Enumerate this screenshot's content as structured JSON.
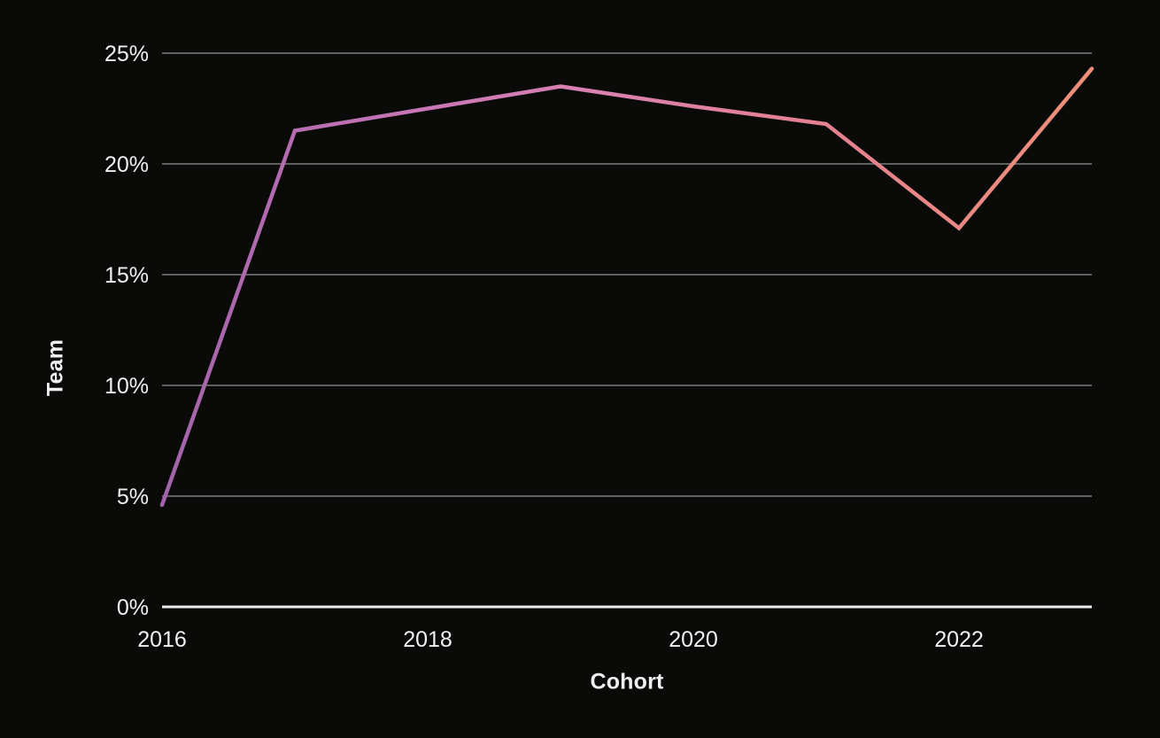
{
  "chart_data": {
    "type": "line",
    "title": "",
    "xlabel": "Cohort",
    "ylabel": "Team",
    "x": [
      2016,
      2017,
      2018,
      2019,
      2020,
      2021,
      2022,
      2023
    ],
    "series": [
      {
        "name": "Team",
        "values": [
          4.6,
          21.5,
          22.5,
          23.5,
          22.6,
          21.8,
          17.1,
          24.3
        ]
      }
    ],
    "xlim": [
      2016,
      2023
    ],
    "ylim": [
      0,
      25
    ],
    "xticks": [
      {
        "value": 2016,
        "label": "2016"
      },
      {
        "value": 2018,
        "label": "2018"
      },
      {
        "value": 2020,
        "label": "2020"
      },
      {
        "value": 2022,
        "label": "2022"
      }
    ],
    "yticks": [
      {
        "value": 0,
        "label": "0%"
      },
      {
        "value": 5,
        "label": "5%"
      },
      {
        "value": 10,
        "label": "10%"
      },
      {
        "value": 15,
        "label": "15%"
      },
      {
        "value": 20,
        "label": "20%"
      },
      {
        "value": 25,
        "label": "25%"
      }
    ],
    "grid": "horizontal",
    "legend_position": "none",
    "colors": {
      "background": "#0a0a08",
      "text": "#f0f0f0",
      "gridline": "#606060",
      "baseline": "#ebebeb",
      "line_gradient_stops": [
        {
          "offset": 0.0,
          "color": "#a263ab"
        },
        {
          "offset": 0.28,
          "color": "#c876b6"
        },
        {
          "offset": 0.45,
          "color": "#d981b2"
        },
        {
          "offset": 0.72,
          "color": "#e5818f"
        },
        {
          "offset": 1.0,
          "color": "#ee9078"
        }
      ]
    }
  }
}
